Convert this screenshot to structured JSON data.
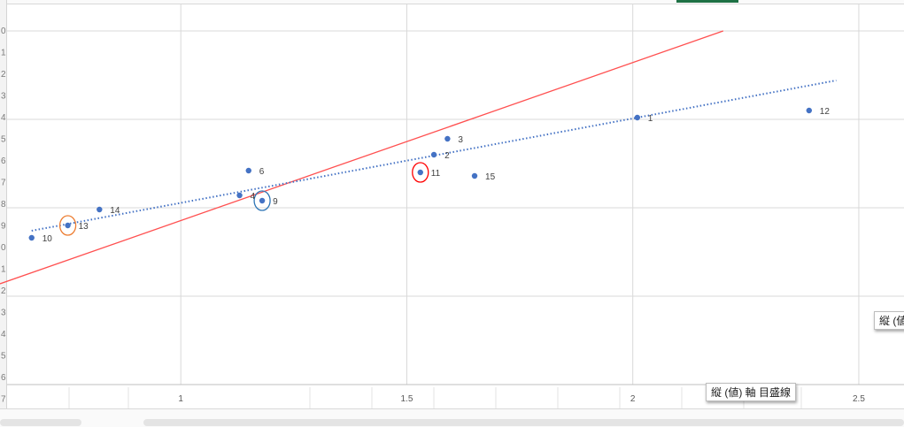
{
  "chart_data": {
    "type": "scatter",
    "title": "",
    "xlabel": "",
    "ylabel": "",
    "xlim": [
      0.6,
      2.6
    ],
    "ylim": [
      0,
      1
    ],
    "x_ticks": [
      1,
      1.5,
      2,
      2.5
    ],
    "x_tick_labels": [
      "1",
      "1.5",
      "2",
      "2.5"
    ],
    "grid": true,
    "points": [
      {
        "label": "1",
        "x": 2.01,
        "y": 0.755
      },
      {
        "label": "2",
        "x": 1.56,
        "y": 0.65
      },
      {
        "label": "3",
        "x": 1.59,
        "y": 0.695
      },
      {
        "label": "4",
        "x": 1.13,
        "y": 0.535
      },
      {
        "label": "6",
        "x": 1.15,
        "y": 0.605
      },
      {
        "label": "9",
        "x": 1.18,
        "y": 0.52
      },
      {
        "label": "10",
        "x": 0.67,
        "y": 0.415
      },
      {
        "label": "11",
        "x": 1.53,
        "y": 0.6
      },
      {
        "label": "12",
        "x": 2.39,
        "y": 0.775
      },
      {
        "label": "13",
        "x": 0.75,
        "y": 0.45
      },
      {
        "label": "14",
        "x": 0.82,
        "y": 0.495
      },
      {
        "label": "15",
        "x": 1.65,
        "y": 0.59
      }
    ],
    "trendline": {
      "style": "dotted",
      "color": "#4472c4",
      "x": [
        0.67,
        2.45
      ],
      "y": [
        0.435,
        0.86
      ]
    },
    "reference_line": {
      "style": "solid",
      "color": "#ff5050",
      "x": [
        0.6,
        2.2
      ],
      "y": [
        0.285,
        1.0
      ]
    },
    "highlights": [
      {
        "point": "13",
        "color": "#ed7d31"
      },
      {
        "point": "9",
        "color": "#2e75b6"
      },
      {
        "point": "11",
        "color": "#ff0000"
      }
    ],
    "point_color": "#4472c4"
  },
  "row_header_digits": [
    "0",
    "1",
    "2",
    "3",
    "4",
    "5",
    "6",
    "7",
    "8",
    "9",
    "0",
    "1",
    "2",
    "3",
    "4",
    "5",
    "6",
    "7"
  ],
  "tooltips": {
    "gridline": "縦 (値) 軸 目盛線",
    "gridline_edge": "縦 (値"
  }
}
